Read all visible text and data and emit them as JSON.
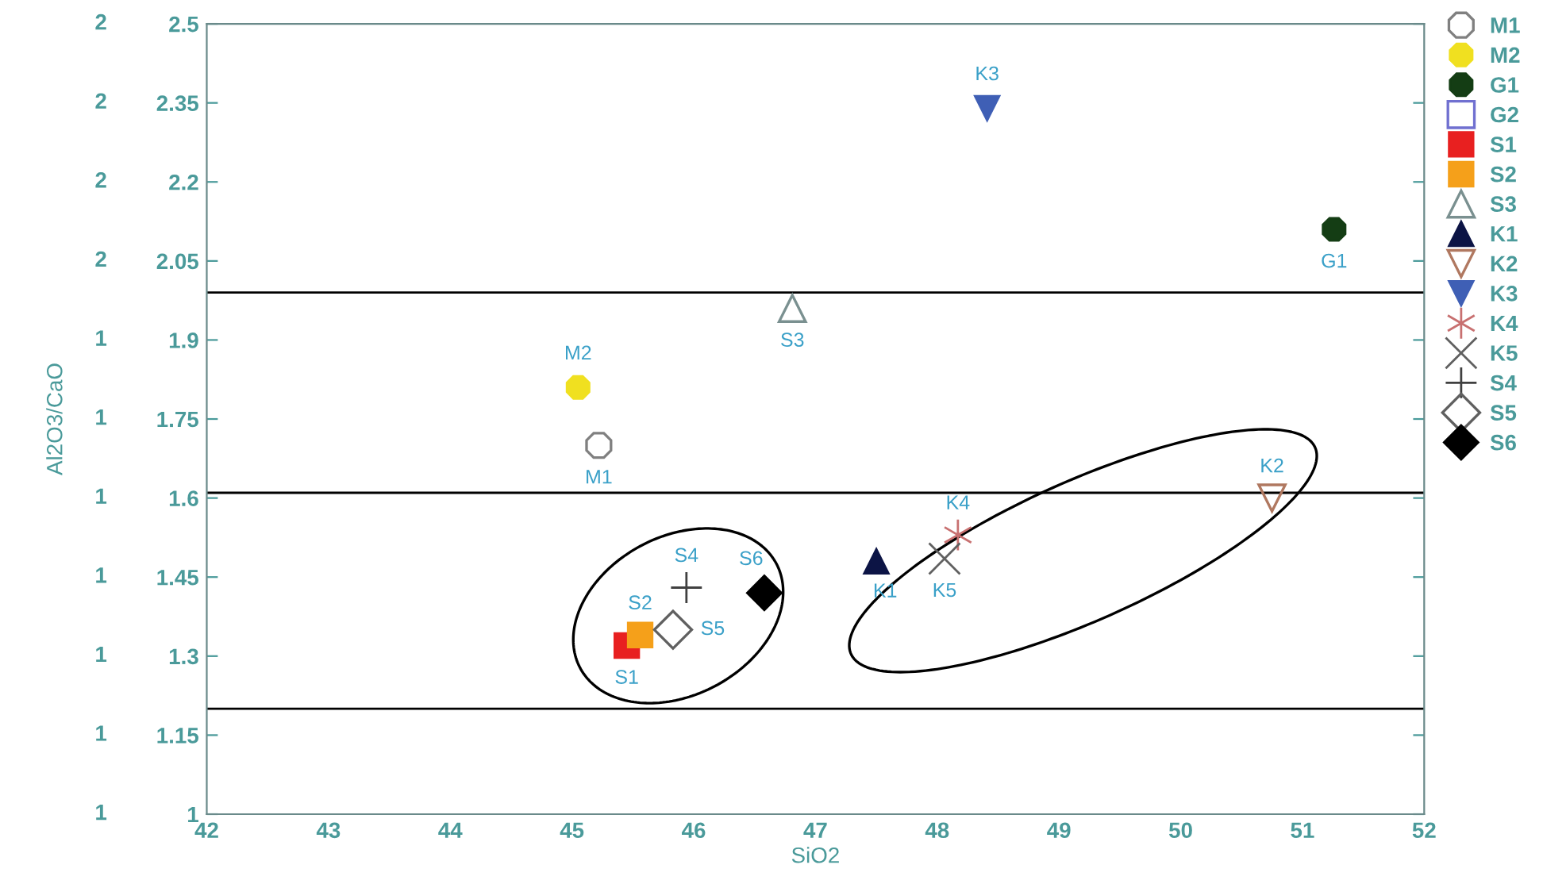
{
  "chart_data": {
    "type": "scatter",
    "xlabel": "SiO2",
    "ylabel": "Al2O3/CaO",
    "xlim": [
      42,
      52
    ],
    "xticks": [
      42,
      43,
      44,
      45,
      46,
      47,
      48,
      49,
      50,
      51,
      52
    ],
    "ylim": [
      1,
      2.5
    ],
    "yticks": [
      1,
      1.15,
      1.3,
      1.45,
      1.6,
      1.75,
      1.9,
      2.05,
      2.2,
      2.35,
      2.5
    ],
    "annotations": [
      "1",
      "1",
      "1",
      "1",
      "1",
      "1",
      "1",
      "2",
      "2",
      "2",
      "2"
    ],
    "grid": false,
    "legend": "right",
    "ref_lines": [
      {
        "axis": "y",
        "value": 1.99,
        "color": "#000000"
      },
      {
        "axis": "y",
        "value": 1.61,
        "color": "#000000"
      },
      {
        "axis": "y",
        "value": 1.2,
        "color": "#000000"
      }
    ],
    "series": [
      {
        "name": "M1",
        "marker": "circle-open",
        "color": "#808080",
        "x": [
          45.22
        ],
        "values": [
          1.7
        ]
      },
      {
        "name": "M2",
        "marker": "circle",
        "color": "#f0e020",
        "x": [
          45.05
        ],
        "values": [
          1.81
        ]
      },
      {
        "name": "G1",
        "marker": "circle",
        "color": "#143d14",
        "x": [
          51.26
        ],
        "values": [
          2.11
        ]
      },
      {
        "name": "G2",
        "marker": "square-open",
        "color": "#7070d0"
      },
      {
        "name": "S1",
        "marker": "square",
        "color": "#e82020",
        "x": [
          45.45
        ],
        "values": [
          1.32
        ]
      },
      {
        "name": "S2",
        "marker": "square",
        "color": "#f5a01a",
        "x": [
          45.56
        ],
        "values": [
          1.34
        ]
      },
      {
        "name": "S3",
        "marker": "triangle-open",
        "color": "#7a9090",
        "x": [
          46.81
        ],
        "values": [
          1.96
        ]
      },
      {
        "name": "K1",
        "marker": "triangle",
        "color": "#0c1445",
        "x": [
          47.5
        ],
        "values": [
          1.48
        ]
      },
      {
        "name": "K2",
        "marker": "triangle_down-open",
        "color": "#b07860",
        "x": [
          50.75
        ],
        "values": [
          1.6
        ]
      },
      {
        "name": "K3",
        "marker": "triangle_down",
        "color": "#3f5fb5",
        "x": [
          48.41
        ],
        "values": [
          2.34
        ]
      },
      {
        "name": "K4",
        "marker": "cross",
        "color": "#c87070",
        "x": [
          48.17
        ],
        "values": [
          1.53
        ]
      },
      {
        "name": "K5",
        "marker": "x",
        "color": "#606060",
        "x": [
          48.06
        ],
        "values": [
          1.485
        ]
      },
      {
        "name": "S4",
        "marker": "plus",
        "color": "#404040",
        "x": [
          45.94
        ],
        "values": [
          1.43
        ]
      },
      {
        "name": "S5",
        "marker": "diamond-open",
        "color": "#606060",
        "x": [
          45.83
        ],
        "values": [
          1.35
        ]
      },
      {
        "name": "S6",
        "marker": "diamond",
        "color": "#000000",
        "x": [
          46.58
        ],
        "values": [
          1.42
        ]
      }
    ]
  }
}
